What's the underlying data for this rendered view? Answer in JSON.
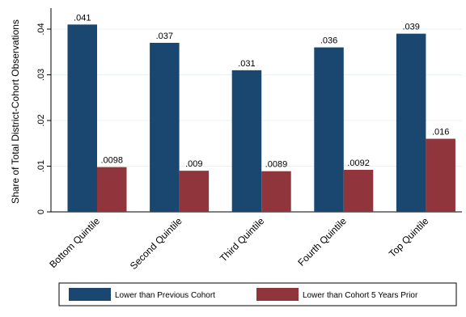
{
  "chart_data": {
    "type": "bar",
    "title": "",
    "ylabel": "Share of Total District-Cohort Observations",
    "xlabel": "",
    "categories": [
      "Bottom Quintile",
      "Second Quintile",
      "Third Quintile",
      "Fourth Quintile",
      "Top Quintile"
    ],
    "series": [
      {
        "name": "Lower than Previous Cohort",
        "values": [
          0.041,
          0.037,
          0.031,
          0.036,
          0.039
        ],
        "labels": [
          ".041",
          ".037",
          ".031",
          ".036",
          ".039"
        ],
        "color": "#1a476f"
      },
      {
        "name": "Lower than Cohort 5 Years Prior",
        "values": [
          0.0098,
          0.009,
          0.0089,
          0.0092,
          0.016
        ],
        "labels": [
          ".0098",
          ".009",
          ".0089",
          ".0092",
          ".016"
        ],
        "color": "#90353b"
      }
    ],
    "ylim": [
      0,
      0.04
    ],
    "yticks": [
      0,
      0.01,
      0.02,
      0.03,
      0.04
    ],
    "ytick_labels": [
      "0",
      ".01",
      ".02",
      ".03",
      ".04"
    ],
    "grid": true,
    "legend_position": "bottom"
  }
}
